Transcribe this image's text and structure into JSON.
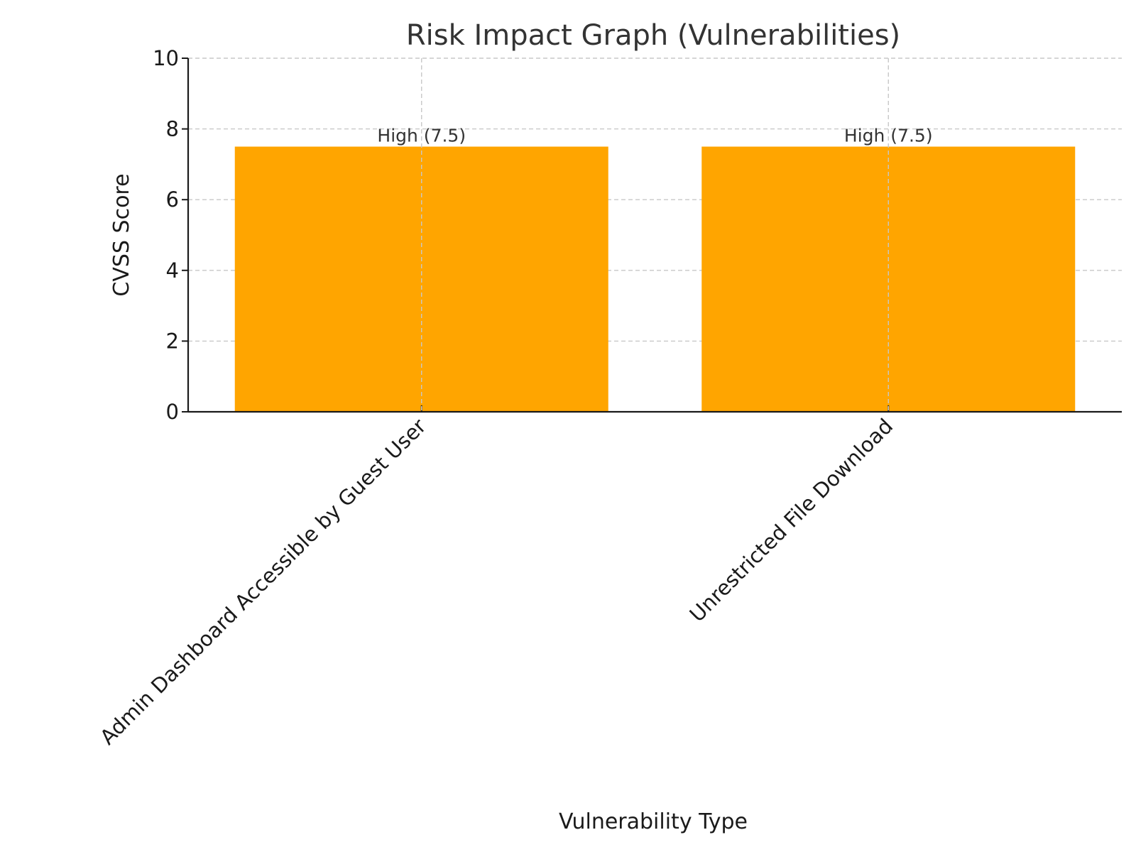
{
  "chart_data": {
    "type": "bar",
    "title": "Risk Impact Graph (Vulnerabilities)",
    "xlabel": "Vulnerability Type",
    "ylabel": "CVSS Score",
    "categories": [
      "Admin Dashboard Accessible by Guest User",
      "Unrestricted File Download"
    ],
    "values": [
      7.5,
      7.5
    ],
    "data_labels": [
      "High (7.5)",
      "High (7.5)"
    ],
    "ylim": [
      0,
      10
    ],
    "yticks": [
      0,
      2,
      4,
      6,
      8,
      10
    ],
    "grid": true,
    "bar_color": "#FFA500",
    "legend": "none"
  }
}
